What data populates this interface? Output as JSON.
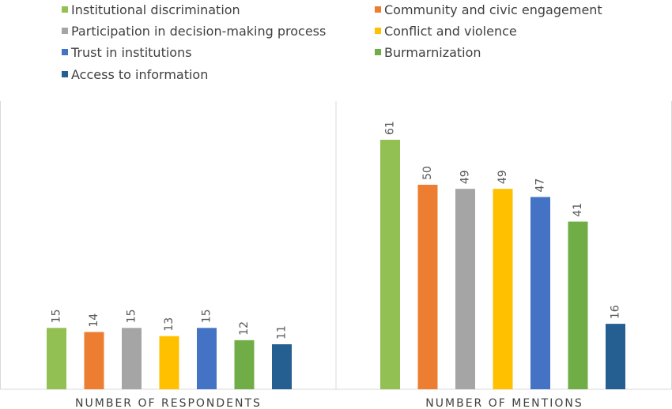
{
  "chart_data": {
    "type": "bar",
    "categories": [
      "NUMBER OF RESPONDENTS",
      "NUMBER OF MENTIONS"
    ],
    "series": [
      {
        "name": "Institutional discrimination",
        "color": "#92c052",
        "values": [
          15,
          61
        ]
      },
      {
        "name": "Community and civic engagement",
        "color": "#ed7d31",
        "values": [
          14,
          50
        ]
      },
      {
        "name": "Participation in decision-making process",
        "color": "#a5a5a5",
        "values": [
          15,
          49
        ]
      },
      {
        "name": "Conflict and violence",
        "color": "#ffc000",
        "values": [
          13,
          49
        ]
      },
      {
        "name": "Trust in institutions",
        "color": "#4472c4",
        "values": [
          15,
          47
        ]
      },
      {
        "name": "Burmarnization",
        "color": "#70ad47",
        "values": [
          12,
          41
        ]
      },
      {
        "name": "Access to information",
        "color": "#255e91",
        "values": [
          11,
          16
        ]
      }
    ],
    "ylim": [
      0,
      61
    ],
    "grid": false,
    "legend_position": "top"
  }
}
